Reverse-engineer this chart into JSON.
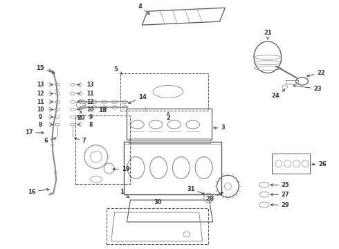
{
  "bg_color": "#ffffff",
  "lc": "#555555",
  "gm": "#888888",
  "gd": "#333333",
  "fs": 6.0,
  "fig_w": 4.9,
  "fig_h": 3.6,
  "dpi": 100
}
